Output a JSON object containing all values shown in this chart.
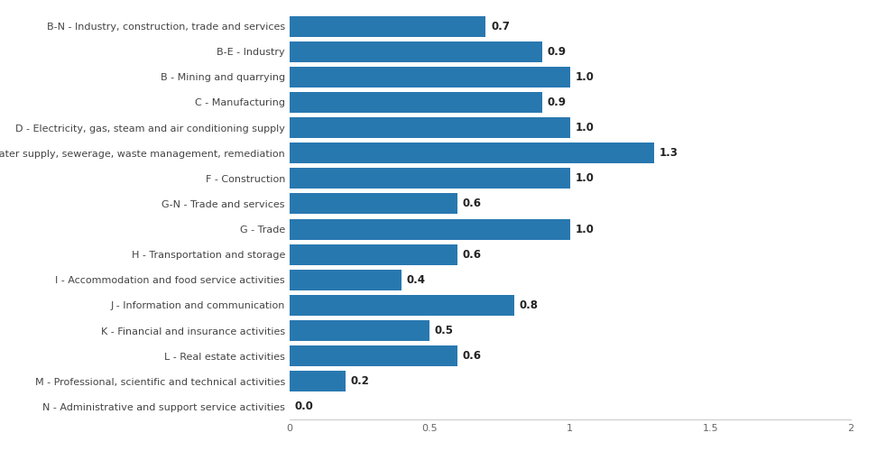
{
  "categories": [
    "N - Administrative and support service activities",
    "M - Professional, scientific and technical activities",
    "L - Real estate activities",
    "K - Financial and insurance activities",
    "J - Information and communication",
    "I - Accommodation and food service activities",
    "H - Transportation and storage",
    "G - Trade",
    "G-N - Trade and services",
    "F - Construction",
    "E- Water supply, sewerage, waste management, remediation",
    "D - Electricity, gas, steam and air conditioning supply",
    "C - Manufacturing",
    "B - Mining and quarrying",
    "B-E - Industry",
    "B-N - Industry, construction, trade and services"
  ],
  "values": [
    0.0,
    0.2,
    0.6,
    0.5,
    0.8,
    0.4,
    0.6,
    1.0,
    0.6,
    1.0,
    1.3,
    1.0,
    0.9,
    1.0,
    0.9,
    0.7
  ],
  "bar_color": "#2878b0",
  "background_color": "#ffffff",
  "xlim": [
    0,
    2
  ],
  "xticks": [
    0,
    0.5,
    1,
    1.5,
    2
  ],
  "bar_height": 0.82,
  "value_fontsize": 8.5,
  "tick_fontsize": 8.0,
  "label_fontsize": 8.0
}
